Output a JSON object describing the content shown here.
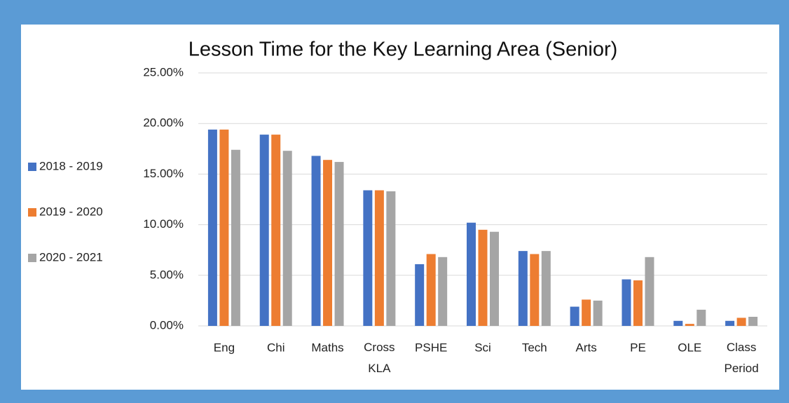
{
  "chart_data": {
    "type": "bar",
    "title": "Lesson Time for the Key Learning Area (Senior)",
    "categories": [
      "Eng",
      "Chi",
      "Maths",
      "Cross KLA",
      "PSHE",
      "Sci",
      "Tech",
      "Arts",
      "PE",
      "OLE",
      "Class Period"
    ],
    "series": [
      {
        "name": "2018 - 2019",
        "color": "#4472c4",
        "values": [
          19.4,
          18.9,
          16.8,
          13.4,
          6.1,
          10.2,
          7.4,
          1.9,
          4.6,
          0.5,
          0.5
        ]
      },
      {
        "name": "2019 - 2020",
        "color": "#ed7d31",
        "values": [
          19.4,
          18.9,
          16.4,
          13.4,
          7.1,
          9.5,
          7.1,
          2.6,
          4.5,
          0.2,
          0.8
        ]
      },
      {
        "name": "2020 - 2021",
        "color": "#a5a5a5",
        "values": [
          17.4,
          17.3,
          16.2,
          13.3,
          6.8,
          9.3,
          7.4,
          2.5,
          6.8,
          1.6,
          0.9
        ]
      }
    ],
    "ylim": [
      0,
      25
    ],
    "yticks": [
      {
        "value": 0,
        "label": "0.00%"
      },
      {
        "value": 5,
        "label": "5.00%"
      },
      {
        "value": 10,
        "label": "10.00%"
      },
      {
        "value": 15,
        "label": "15.00%"
      },
      {
        "value": 20,
        "label": "20.00%"
      },
      {
        "value": 25,
        "label": "25.00%"
      }
    ],
    "grid": true,
    "legend": "left"
  }
}
